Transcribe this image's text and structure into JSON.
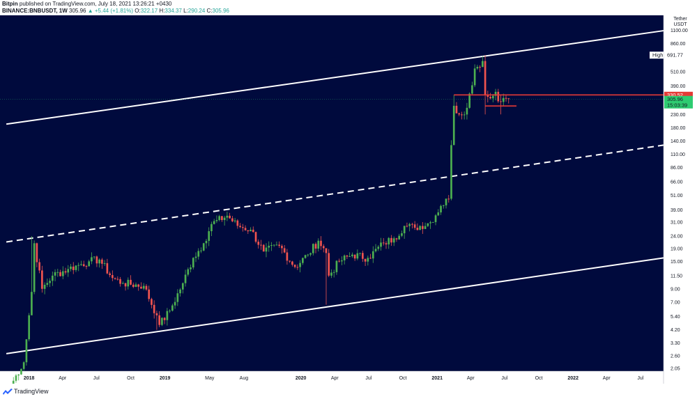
{
  "header": {
    "publisher": "Bitpin",
    "published_text": "published on TradingView.com, July 18, 2021 13:26:21 +0430",
    "symbol": "BINANCE:BNBUSDT, 1W",
    "last": "305.96",
    "change": "+5.44 (+1.81%)",
    "o_label": "O:",
    "o_value": "322.17",
    "h_label": "H:",
    "h_value": "334.37",
    "l_label": "L:",
    "l_value": "290.24",
    "c_label": "C:",
    "c_value": "305.96"
  },
  "footer": {
    "brand": "TradingView"
  },
  "colors": {
    "background": "#000a3d",
    "up": "#4caf50",
    "down": "#f0544f",
    "channel": "#ffffff",
    "level": "#e53935",
    "price_tag": "#2ecc71"
  },
  "chart_data": {
    "type": "candlestick",
    "scale": "log",
    "currency_label": [
      "Tether",
      "USDT"
    ],
    "y_ticks": [
      2.05,
      2.6,
      3.3,
      4.2,
      5.4,
      7.0,
      9.0,
      11.5,
      15.0,
      19.0,
      24.0,
      31.0,
      39.0,
      51.0,
      66.0,
      86.0,
      110.0,
      140.0,
      180.0,
      230.0,
      390.0,
      510.0,
      860.0,
      1100.0
    ],
    "y_tick_labels": [
      "2.05",
      "2.60",
      "3.30",
      "4.20",
      "5.40",
      "7.00",
      "9.00",
      "11.50",
      "15.00",
      "19.00",
      "24.00",
      "31.00",
      "39.00",
      "51.00",
      "66.00",
      "86.00",
      "110.00",
      "140.00",
      "180.00",
      "230.00",
      "390.00",
      "510.00",
      "860.00",
      "1100.00"
    ],
    "ylim": [
      1.95,
      1450
    ],
    "xlim": [
      "2017-10-15",
      "2022-09-01"
    ],
    "x_ticks": [
      {
        "date": "2018-01-01",
        "label": "2018",
        "bold": true
      },
      {
        "date": "2018-04-01",
        "label": "Apr"
      },
      {
        "date": "2018-07-01",
        "label": "Jul"
      },
      {
        "date": "2018-10-01",
        "label": "Oct"
      },
      {
        "date": "2019-01-01",
        "label": "2019",
        "bold": true
      },
      {
        "date": "2019-05-01",
        "label": "May"
      },
      {
        "date": "2019-08-01",
        "label": "Aug"
      },
      {
        "date": "2020-01-01",
        "label": "2020",
        "bold": true
      },
      {
        "date": "2020-04-01",
        "label": "Apr"
      },
      {
        "date": "2020-07-01",
        "label": "Jul"
      },
      {
        "date": "2020-10-01",
        "label": "Oct"
      },
      {
        "date": "2021-01-01",
        "label": "2021",
        "bold": true
      },
      {
        "date": "2021-04-01",
        "label": "Apr"
      },
      {
        "date": "2021-07-01",
        "label": "Jul"
      },
      {
        "date": "2021-10-01",
        "label": "Oct"
      },
      {
        "date": "2022-01-01",
        "label": "2022",
        "bold": true
      },
      {
        "date": "2022-04-01",
        "label": "Apr"
      },
      {
        "date": "2022-07-01",
        "label": "Jul"
      }
    ],
    "anchors": [
      {
        "date": "2017-11-06",
        "price": 1.3
      },
      {
        "date": "2017-11-27",
        "price": 1.8
      },
      {
        "date": "2017-12-18",
        "price": 2.3
      },
      {
        "date": "2018-01-08",
        "price": 8.5
      },
      {
        "date": "2018-01-15",
        "price": 21.0
      },
      {
        "date": "2018-02-05",
        "price": 9.0
      },
      {
        "date": "2018-03-05",
        "price": 11.5
      },
      {
        "date": "2018-04-16",
        "price": 13.0
      },
      {
        "date": "2018-05-14",
        "price": 14.0
      },
      {
        "date": "2018-06-11",
        "price": 15.0
      },
      {
        "date": "2018-07-09",
        "price": 15.5
      },
      {
        "date": "2018-08-13",
        "price": 11.0
      },
      {
        "date": "2018-09-10",
        "price": 10.0
      },
      {
        "date": "2018-11-05",
        "price": 9.5
      },
      {
        "date": "2018-12-10",
        "price": 5.5
      },
      {
        "date": "2018-12-17",
        "price": 4.6
      },
      {
        "date": "2019-01-14",
        "price": 6.0
      },
      {
        "date": "2019-02-18",
        "price": 10.0
      },
      {
        "date": "2019-03-18",
        "price": 16.0
      },
      {
        "date": "2019-04-15",
        "price": 21.0
      },
      {
        "date": "2019-05-06",
        "price": 30.0
      },
      {
        "date": "2019-06-17",
        "price": 35.0
      },
      {
        "date": "2019-07-15",
        "price": 29.0
      },
      {
        "date": "2019-08-19",
        "price": 27.0
      },
      {
        "date": "2019-09-23",
        "price": 18.0
      },
      {
        "date": "2019-11-04",
        "price": 20.0
      },
      {
        "date": "2019-12-16",
        "price": 13.5
      },
      {
        "date": "2020-01-20",
        "price": 17.0
      },
      {
        "date": "2020-02-17",
        "price": 22.0
      },
      {
        "date": "2020-03-09",
        "price": 17.5
      },
      {
        "date": "2020-03-16",
        "price": 11.5
      },
      {
        "date": "2020-04-13",
        "price": 15.0
      },
      {
        "date": "2020-05-18",
        "price": 17.0
      },
      {
        "date": "2020-06-29",
        "price": 16.0
      },
      {
        "date": "2020-08-10",
        "price": 21.0
      },
      {
        "date": "2020-09-07",
        "price": 23.0
      },
      {
        "date": "2020-10-05",
        "price": 29.0
      },
      {
        "date": "2020-11-02",
        "price": 28.0
      },
      {
        "date": "2020-12-14",
        "price": 31.0
      },
      {
        "date": "2021-01-11",
        "price": 42.0
      },
      {
        "date": "2021-02-01",
        "price": 48.0
      },
      {
        "date": "2021-02-08",
        "price": 130.0
      },
      {
        "date": "2021-02-15",
        "price": 270.0
      },
      {
        "date": "2021-03-01",
        "price": 230.0
      },
      {
        "date": "2021-03-22",
        "price": 260.0
      },
      {
        "date": "2021-04-12",
        "price": 540.0
      },
      {
        "date": "2021-05-03",
        "price": 620.0
      },
      {
        "date": "2021-05-10",
        "price": 330.0
      },
      {
        "date": "2021-05-24",
        "price": 310.0
      },
      {
        "date": "2021-06-07",
        "price": 350.0
      },
      {
        "date": "2021-06-21",
        "price": 290.0
      },
      {
        "date": "2021-07-05",
        "price": 310.0
      },
      {
        "date": "2021-07-12",
        "price": 305.96
      }
    ],
    "wicks": [
      {
        "date": "2018-01-08",
        "low": 6.5,
        "high": 24.0
      },
      {
        "date": "2018-12-10",
        "low": 4.2,
        "high": 6.0
      },
      {
        "date": "2020-03-09",
        "low": 6.7,
        "high": 19.0
      },
      {
        "date": "2021-02-15",
        "low": 230.0,
        "high": 330.0
      },
      {
        "date": "2021-05-10",
        "low": 230.0,
        "high": 691.77
      },
      {
        "date": "2021-06-21",
        "low": 230.0,
        "high": 330.0
      }
    ],
    "channels": [
      {
        "name": "channel-top",
        "style": "solid",
        "from": {
          "date": "2017-11-01",
          "price": 192
        },
        "to": {
          "date": "2022-09-01",
          "price": 1090
        }
      },
      {
        "name": "channel-mid",
        "style": "dashed",
        "from": {
          "date": "2017-11-01",
          "price": 21.5
        },
        "to": {
          "date": "2022-09-01",
          "price": 130
        }
      },
      {
        "name": "channel-bottom",
        "style": "solid",
        "from": {
          "date": "2017-11-01",
          "price": 2.7
        },
        "to": {
          "date": "2022-09-01",
          "price": 16
        }
      }
    ],
    "levels": [
      {
        "name": "resistance-line",
        "price": 330.52,
        "from": "2021-02-15",
        "to": "2022-09-01"
      },
      {
        "name": "support-line",
        "price": 269.0,
        "from": "2021-05-10",
        "to": "2021-08-02"
      }
    ],
    "tags": [
      {
        "name": "high-tag",
        "label": "High",
        "value": "691.77",
        "price": 691.77,
        "bg": "#ffffff",
        "fg": "#131722"
      },
      {
        "name": "resistance-tag",
        "value": "330.52",
        "price": 330.52,
        "bg": "#e53935",
        "fg": "#ffffff"
      },
      {
        "name": "last-price-tag",
        "value": "305.96",
        "countdown": "15:03:39",
        "price": 305.96,
        "bg": "#2ecc71",
        "fg": "#131722"
      }
    ]
  }
}
